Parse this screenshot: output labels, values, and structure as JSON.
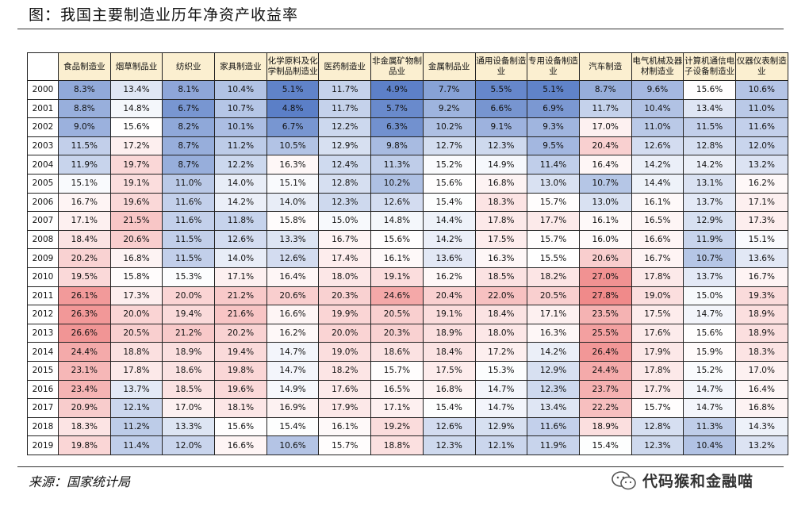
{
  "title": "图：我国主要制造业历年净资产收益率",
  "source": "来源：国家统计局",
  "watermark": "代码猴和金融喵",
  "colors": {
    "low": "#5b7fc7",
    "mid": "#ffffff",
    "high": "#f08a8a",
    "header_bg": "#fbefd0"
  },
  "chart_data": {
    "type": "heatmap",
    "title": "我国主要制造业历年净资产收益率",
    "columns": [
      "食品制造业",
      "烟草制品业",
      "纺织业",
      "家具制造业",
      "化学原料及化学制品制造业",
      "医药制造业",
      "非金属矿物制品业",
      "金属制品业",
      "通用设备制造业",
      "专用设备制造业",
      "汽车制造",
      "电气机械及器材制造业",
      "计算机通信电子设备制造业",
      "仪器仪表制造业"
    ],
    "column_display": [
      [
        "食品制造业"
      ],
      [
        "烟草制品业"
      ],
      [
        "纺织业"
      ],
      [
        "家具制造业"
      ],
      [
        "化学原料及化",
        "学制品制造业"
      ],
      [
        "医药制造业"
      ],
      [
        "非金属矿物制",
        "品业"
      ],
      [
        "金属制品业"
      ],
      [
        "通用设备制造",
        "业"
      ],
      [
        "专用设备制造",
        "业"
      ],
      [
        "汽车制造"
      ],
      [
        "电气机械及器",
        "材制造业"
      ],
      [
        "计算机通信电",
        "子设备制造业"
      ],
      [
        "仪器仪表制造",
        "业"
      ]
    ],
    "rows": [
      "2000",
      "2001",
      "2002",
      "2003",
      "2004",
      "2005",
      "2006",
      "2007",
      "2008",
      "2009",
      "2010",
      "2011",
      "2012",
      "2013",
      "2014",
      "2015",
      "2016",
      "2017",
      "2018",
      "2019"
    ],
    "unit": "%",
    "values": [
      [
        8.3,
        13.4,
        8.1,
        10.4,
        5.1,
        11.7,
        4.9,
        7.7,
        5.5,
        5.1,
        8.7,
        9.6,
        15.6,
        10.6
      ],
      [
        8.8,
        14.8,
        6.7,
        10.7,
        4.8,
        11.7,
        5.7,
        9.2,
        6.6,
        6.9,
        11.7,
        10.4,
        13.4,
        11.0
      ],
      [
        9.0,
        15.6,
        8.2,
        10.1,
        6.7,
        12.2,
        6.3,
        10.2,
        9.1,
        9.3,
        17.0,
        11.0,
        11.5,
        11.6
      ],
      [
        11.5,
        17.2,
        8.7,
        11.2,
        10.5,
        12.9,
        9.8,
        12.7,
        12.3,
        9.5,
        20.4,
        12.6,
        12.8,
        12.0
      ],
      [
        11.9,
        19.7,
        8.7,
        12.2,
        16.3,
        12.4,
        11.3,
        15.2,
        14.9,
        11.4,
        16.4,
        14.2,
        14.2,
        13.2
      ],
      [
        15.1,
        19.1,
        11.0,
        14.0,
        15.1,
        12.8,
        10.2,
        15.6,
        16.8,
        13.0,
        10.7,
        14.4,
        13.1,
        16.2
      ],
      [
        16.7,
        19.6,
        11.6,
        14.2,
        14.0,
        12.3,
        12.6,
        15.4,
        18.3,
        15.7,
        13.0,
        16.1,
        13.7,
        17.1
      ],
      [
        17.1,
        21.5,
        11.6,
        11.8,
        15.8,
        15.0,
        14.8,
        14.4,
        17.8,
        17.7,
        16.1,
        16.5,
        12.9,
        17.3
      ],
      [
        18.4,
        20.6,
        11.5,
        12.6,
        13.3,
        16.7,
        15.6,
        14.2,
        17.5,
        15.7,
        16.0,
        16.6,
        11.9,
        15.1
      ],
      [
        20.2,
        16.8,
        11.5,
        14.0,
        12.6,
        17.4,
        16.1,
        13.6,
        16.3,
        15.5,
        20.6,
        16.7,
        10.7,
        13.6
      ],
      [
        19.5,
        15.8,
        15.3,
        17.1,
        16.4,
        18.0,
        19.1,
        16.2,
        18.5,
        18.2,
        27.0,
        17.8,
        13.7,
        16.7
      ],
      [
        26.1,
        17.3,
        20.0,
        21.2,
        20.6,
        20.3,
        24.6,
        20.4,
        22.0,
        20.5,
        27.8,
        19.0,
        15.0,
        19.3
      ],
      [
        26.3,
        20.0,
        19.4,
        21.6,
        16.6,
        19.9,
        20.5,
        19.1,
        18.4,
        17.1,
        23.5,
        17.5,
        14.7,
        18.9
      ],
      [
        26.6,
        20.5,
        21.2,
        20.2,
        16.2,
        20.0,
        20.3,
        18.9,
        18.0,
        16.3,
        25.5,
        17.6,
        15.6,
        18.9
      ],
      [
        24.4,
        18.8,
        18.9,
        19.4,
        14.7,
        19.0,
        18.6,
        18.4,
        17.2,
        14.2,
        26.4,
        17.9,
        15.9,
        18.3
      ],
      [
        23.1,
        17.8,
        18.6,
        19.8,
        14.7,
        18.2,
        15.7,
        17.5,
        15.3,
        12.9,
        24.4,
        17.8,
        15.2,
        17.0
      ],
      [
        23.4,
        13.7,
        18.5,
        19.6,
        14.9,
        17.6,
        16.5,
        16.8,
        14.7,
        12.3,
        23.7,
        17.7,
        14.7,
        16.4
      ],
      [
        20.9,
        12.1,
        17.0,
        18.1,
        16.9,
        17.9,
        17.1,
        15.4,
        14.7,
        13.4,
        22.2,
        15.7,
        14.7,
        16.8
      ],
      [
        18.3,
        11.2,
        13.3,
        15.6,
        15.4,
        16.1,
        19.2,
        12.6,
        12.9,
        11.6,
        18.9,
        12.8,
        11.3,
        14.3
      ],
      [
        19.8,
        11.4,
        12.0,
        16.6,
        10.6,
        15.7,
        18.8,
        12.3,
        12.1,
        11.9,
        15.4,
        12.3,
        10.4,
        13.2
      ]
    ]
  }
}
